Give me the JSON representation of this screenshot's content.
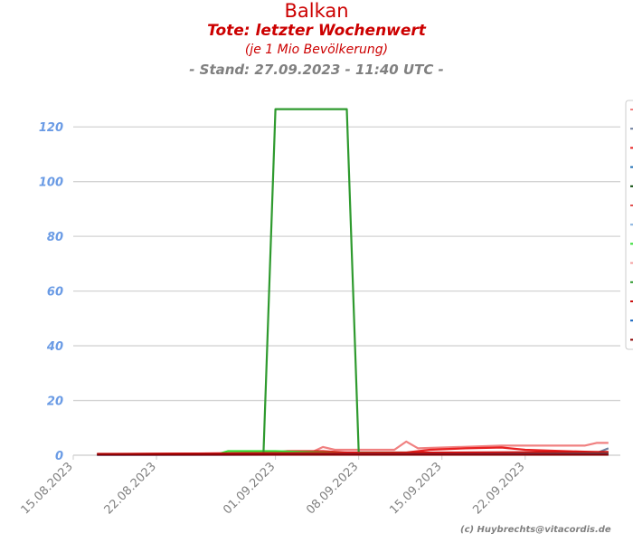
{
  "titles": {
    "main": "Balkan",
    "sub": "Tote: letzter Wochenwert",
    "note": "(je 1 Mio Bevölkerung)",
    "stand": "- Stand: 27.09.2023 - 11:40 UTC -"
  },
  "credit": "(c) Huybrechts@vitacordis.de",
  "chart_data": {
    "type": "line",
    "x_range": [
      "15.08.2023",
      "30.09.2023"
    ],
    "ylim": [
      0,
      130
    ],
    "yticks": [
      0,
      20,
      40,
      60,
      80,
      100,
      120
    ],
    "xticks": [
      "15.08.2023",
      "22.08.2023",
      "01.09.2023",
      "08.09.2023",
      "15.09.2023",
      "22.09.2023"
    ],
    "grid": "horizontal",
    "legend": {
      "position": "right",
      "labels_visible": false
    },
    "series": [
      {
        "color": "#f08080",
        "points": [
          [
            "17.08.2023",
            0.3
          ],
          [
            "24.08.2023",
            0.5
          ],
          [
            "31.08.2023",
            0.8
          ],
          [
            "04.09.2023",
            1
          ],
          [
            "05.09.2023",
            3
          ],
          [
            "06.09.2023",
            2
          ],
          [
            "11.09.2023",
            2
          ],
          [
            "12.09.2023",
            5
          ],
          [
            "13.09.2023",
            2.5
          ],
          [
            "20.09.2023",
            3.5
          ],
          [
            "27.09.2023",
            3.5
          ],
          [
            "28.09.2023",
            4.5
          ],
          [
            "29.09.2023",
            4.5
          ]
        ]
      },
      {
        "color": "#6e7f9e",
        "points": [
          [
            "17.08.2023",
            0.3
          ],
          [
            "31.08.2023",
            0.3
          ],
          [
            "14.09.2023",
            0.5
          ],
          [
            "21.09.2023",
            0.5
          ],
          [
            "28.09.2023",
            0.8
          ],
          [
            "29.09.2023",
            2.5
          ]
        ]
      },
      {
        "color": "#e82020",
        "points": [
          [
            "17.08.2023",
            0.4
          ],
          [
            "24.08.2023",
            0.6
          ],
          [
            "31.08.2023",
            0.8
          ],
          [
            "02.09.2023",
            1.5
          ],
          [
            "05.09.2023",
            1.5
          ],
          [
            "07.09.2023",
            1
          ],
          [
            "12.09.2023",
            1
          ],
          [
            "14.09.2023",
            2
          ],
          [
            "17.09.2023",
            2.5
          ],
          [
            "20.09.2023",
            2.8
          ],
          [
            "22.09.2023",
            2
          ],
          [
            "29.09.2023",
            1
          ]
        ]
      },
      {
        "color": "#1f6fb5",
        "points": [
          [
            "17.08.2023",
            0.2
          ],
          [
            "29.09.2023",
            0.4
          ]
        ]
      },
      {
        "color": "#0a4a0a",
        "points": [
          [
            "17.08.2023",
            0.2
          ],
          [
            "29.09.2023",
            0.3
          ]
        ]
      },
      {
        "color": "#e05050",
        "points": [
          [
            "17.08.2023",
            0.3
          ],
          [
            "15.09.2023",
            0.6
          ],
          [
            "29.09.2023",
            0.8
          ]
        ]
      },
      {
        "color": "#8ab4e0",
        "points": [
          [
            "17.08.2023",
            0.2
          ],
          [
            "29.09.2023",
            0.2
          ]
        ]
      },
      {
        "color": "#33dd33",
        "points": [
          [
            "17.08.2023",
            0.2
          ],
          [
            "27.08.2023",
            0.2
          ],
          [
            "28.08.2023",
            1.5
          ],
          [
            "01.09.2023",
            1.5
          ],
          [
            "03.09.2023",
            1.2
          ],
          [
            "07.09.2023",
            0.8
          ],
          [
            "21.09.2023",
            0.6
          ],
          [
            "29.09.2023",
            0.5
          ]
        ]
      },
      {
        "color": "#f4a0a0",
        "points": [
          [
            "17.08.2023",
            0.4
          ],
          [
            "29.09.2023",
            0.8
          ]
        ]
      },
      {
        "color": "#2e9a2e",
        "points": [
          [
            "31.08.2023",
            1
          ],
          [
            "01.09.2023",
            126.5
          ],
          [
            "07.09.2023",
            126.5
          ],
          [
            "08.09.2023",
            1
          ],
          [
            "22.09.2023",
            0.8
          ],
          [
            "29.09.2023",
            0.6
          ]
        ]
      },
      {
        "color": "#cc1010",
        "points": [
          [
            "17.08.2023",
            0.5
          ],
          [
            "29.09.2023",
            1.2
          ]
        ]
      },
      {
        "color": "#1565c0",
        "points": [
          [
            "17.08.2023",
            0.1
          ],
          [
            "29.09.2023",
            0.4
          ]
        ]
      },
      {
        "color": "#8b0000",
        "points": [
          [
            "17.08.2023",
            0.2
          ],
          [
            "29.09.2023",
            0.2
          ]
        ]
      }
    ]
  }
}
